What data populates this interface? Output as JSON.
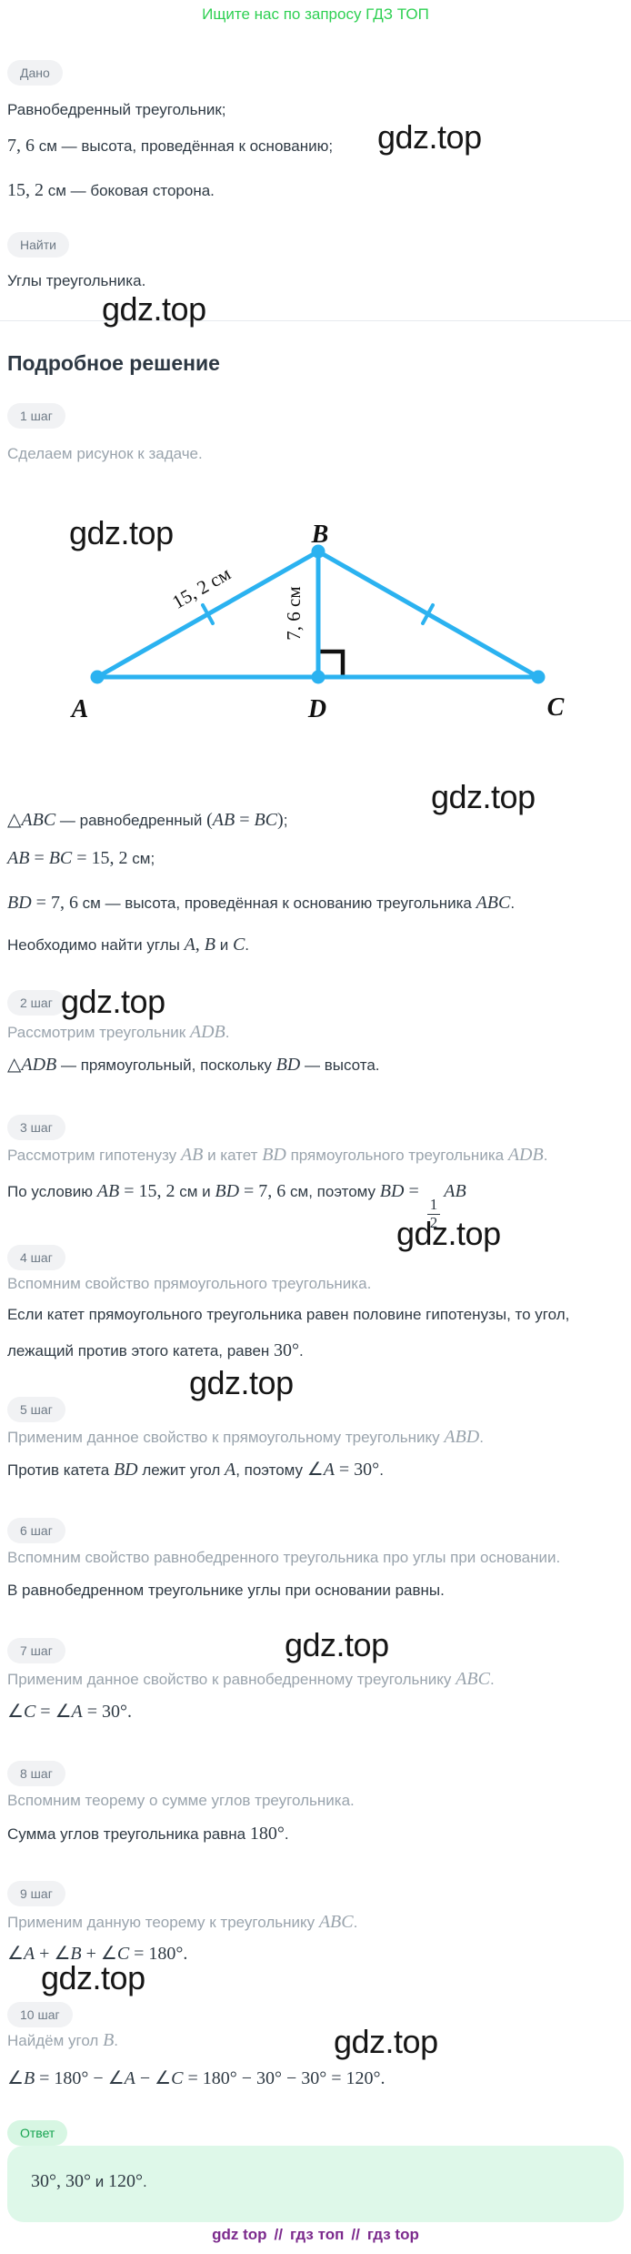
{
  "header": {
    "link_text": "Ищите нас по запросу ГДЗ ТОП"
  },
  "watermark": {
    "text": "gdz.top"
  },
  "given": {
    "badge": "Дано",
    "lines": [
      [
        {
          "t": "Равнобедренный треугольник;",
          "s": "t"
        }
      ],
      [
        {
          "t": "7, 6",
          "s": "m"
        },
        {
          "t": " см — высота, проведённая к основанию;",
          "s": "t"
        }
      ],
      [
        {
          "t": "15, 2",
          "s": "m"
        },
        {
          "t": " см — боковая сторона.",
          "s": "t"
        }
      ]
    ]
  },
  "find": {
    "badge": "Найти",
    "lines": [
      [
        {
          "t": "Углы треугольника.",
          "s": "t"
        }
      ]
    ]
  },
  "solution": {
    "heading": "Подробное решение"
  },
  "diagram": {
    "labels": {
      "a": "A",
      "b": "B",
      "c": "C",
      "d": "D"
    },
    "side_label": "15, 2 см",
    "height_label": "7, 6 см",
    "line_color": "#2bb2f0",
    "mark_color": "#111111"
  },
  "steps": [
    {
      "badge": "1 шаг",
      "desc": [
        {
          "t": "Сделаем рисунок к задаче.",
          "s": "t"
        }
      ],
      "main": [
        [
          {
            "t": "△",
            "s": "m"
          },
          {
            "t": "ABC",
            "s": "mi"
          },
          {
            "t": " — равнобедренный ",
            "s": "t"
          },
          {
            "t": "(",
            "s": "m"
          },
          {
            "t": "AB",
            "s": "mi"
          },
          {
            "t": " = ",
            "s": "m"
          },
          {
            "t": "BC",
            "s": "mi"
          },
          {
            "t": ")",
            "s": "m"
          },
          {
            "t": ";",
            "s": "t"
          }
        ],
        [
          {
            "t": "AB",
            "s": "mi"
          },
          {
            "t": " = ",
            "s": "m"
          },
          {
            "t": "BC",
            "s": "mi"
          },
          {
            "t": " = 15, 2",
            "s": "m"
          },
          {
            "t": " см;",
            "s": "t"
          }
        ],
        [
          {
            "t": "BD",
            "s": "mi"
          },
          {
            "t": " = 7, 6",
            "s": "m"
          },
          {
            "t": " см — высота, проведённая к основанию треугольника ",
            "s": "t"
          },
          {
            "t": "ABC",
            "s": "mi"
          },
          {
            "t": ".",
            "s": "t"
          }
        ],
        [
          {
            "t": "Необходимо найти углы ",
            "s": "t"
          },
          {
            "t": "A",
            "s": "mi"
          },
          {
            "t": ", ",
            "s": "m"
          },
          {
            "t": "B",
            "s": "mi"
          },
          {
            "t": " и ",
            "s": "t"
          },
          {
            "t": "C",
            "s": "mi"
          },
          {
            "t": ".",
            "s": "t"
          }
        ]
      ]
    },
    {
      "badge": "2 шаг",
      "desc": [
        {
          "t": "Рассмотрим треугольник ",
          "s": "t"
        },
        {
          "t": "ADB",
          "s": "mi"
        },
        {
          "t": ".",
          "s": "t"
        }
      ],
      "main": [
        [
          {
            "t": "△",
            "s": "m"
          },
          {
            "t": "ADB",
            "s": "mi"
          },
          {
            "t": " — прямоугольный, поскольку ",
            "s": "t"
          },
          {
            "t": "BD",
            "s": "mi"
          },
          {
            "t": " — высота.",
            "s": "t"
          }
        ]
      ]
    },
    {
      "badge": "3 шаг",
      "desc": [
        {
          "t": "Рассмотрим гипотенузу ",
          "s": "t"
        },
        {
          "t": "AB",
          "s": "mi"
        },
        {
          "t": " и катет ",
          "s": "t"
        },
        {
          "t": "BD",
          "s": "mi"
        },
        {
          "t": " прямоугольного треугольника ",
          "s": "t"
        },
        {
          "t": "ADB",
          "s": "mi"
        },
        {
          "t": ".",
          "s": "t"
        }
      ],
      "main": [
        [
          {
            "t": "По условию ",
            "s": "t"
          },
          {
            "t": "AB",
            "s": "mi"
          },
          {
            "t": " = 15, 2",
            "s": "m"
          },
          {
            "t": " см и ",
            "s": "t"
          },
          {
            "t": "BD",
            "s": "mi"
          },
          {
            "t": " = 7, 6",
            "s": "m"
          },
          {
            "t": " см, поэтому ",
            "s": "t"
          },
          {
            "t": "BD",
            "s": "mi"
          },
          {
            "t": " = ",
            "s": "m"
          },
          {
            "f": [
              "1",
              "2"
            ]
          },
          {
            "t": "AB",
            "s": "mi"
          }
        ]
      ]
    },
    {
      "badge": "4 шаг",
      "desc": [
        {
          "t": "Вспомним свойство прямоугольного треугольника.",
          "s": "t"
        }
      ],
      "main": [
        [
          {
            "t": "Если катет прямоугольного треугольника равен половине гипотенузы, то угол,",
            "s": "t"
          }
        ],
        [
          {
            "t": "лежащий против этого катета, равен ",
            "s": "t"
          },
          {
            "t": "30°",
            "s": "m"
          },
          {
            "t": ".",
            "s": "t"
          }
        ]
      ]
    },
    {
      "badge": "5 шаг",
      "desc": [
        {
          "t": "Применим данное свойство к прямоугольному треугольнику ",
          "s": "t"
        },
        {
          "t": "ABD",
          "s": "mi"
        },
        {
          "t": ".",
          "s": "t"
        }
      ],
      "main": [
        [
          {
            "t": "Против катета ",
            "s": "t"
          },
          {
            "t": "BD",
            "s": "mi"
          },
          {
            "t": " лежит угол ",
            "s": "t"
          },
          {
            "t": "A",
            "s": "mi"
          },
          {
            "t": ", поэтому ",
            "s": "t"
          },
          {
            "t": "∠",
            "s": "m"
          },
          {
            "t": "A",
            "s": "mi"
          },
          {
            "t": " = 30°",
            "s": "m"
          },
          {
            "t": ".",
            "s": "t"
          }
        ]
      ]
    },
    {
      "badge": "6 шаг",
      "desc": [
        {
          "t": "Вспомним свойство равнобедренного треугольника про углы при основании.",
          "s": "t"
        }
      ],
      "main": [
        [
          {
            "t": "В равнобедренном треугольнике углы при основании равны.",
            "s": "t"
          }
        ]
      ]
    },
    {
      "badge": "7 шаг",
      "desc": [
        {
          "t": "Применим данное свойство к равнобедренному треугольнику ",
          "s": "t"
        },
        {
          "t": "ABC",
          "s": "mi"
        },
        {
          "t": ".",
          "s": "t"
        }
      ],
      "main": [
        [
          {
            "t": "∠",
            "s": "m"
          },
          {
            "t": "C",
            "s": "mi"
          },
          {
            "t": " = ",
            "s": "m"
          },
          {
            "t": "∠",
            "s": "m"
          },
          {
            "t": "A",
            "s": "mi"
          },
          {
            "t": " = 30°.",
            "s": "m"
          }
        ]
      ]
    },
    {
      "badge": "8 шаг",
      "desc": [
        {
          "t": "Вспомним теорему о сумме углов треугольника.",
          "s": "t"
        }
      ],
      "main": [
        [
          {
            "t": "Сумма углов треугольника равна ",
            "s": "t"
          },
          {
            "t": "180°",
            "s": "m"
          },
          {
            "t": ".",
            "s": "t"
          }
        ]
      ]
    },
    {
      "badge": "9 шаг",
      "desc": [
        {
          "t": "Применим данную теорему к треугольнику ",
          "s": "t"
        },
        {
          "t": "ABC",
          "s": "mi"
        },
        {
          "t": ".",
          "s": "t"
        }
      ],
      "main": [
        [
          {
            "t": "∠",
            "s": "m"
          },
          {
            "t": "A",
            "s": "mi"
          },
          {
            "t": " + ",
            "s": "m"
          },
          {
            "t": "∠",
            "s": "m"
          },
          {
            "t": "B",
            "s": "mi"
          },
          {
            "t": " + ",
            "s": "m"
          },
          {
            "t": "∠",
            "s": "m"
          },
          {
            "t": "C",
            "s": "mi"
          },
          {
            "t": " = 180°.",
            "s": "m"
          }
        ]
      ]
    },
    {
      "badge": "10 шаг",
      "desc": [
        {
          "t": "Найдём угол ",
          "s": "t"
        },
        {
          "t": "B",
          "s": "mi"
        },
        {
          "t": ".",
          "s": "t"
        }
      ],
      "main": [
        [
          {
            "t": "∠",
            "s": "m"
          },
          {
            "t": "B",
            "s": "mi"
          },
          {
            "t": " = 180° − ",
            "s": "m"
          },
          {
            "t": "∠",
            "s": "m"
          },
          {
            "t": "A",
            "s": "mi"
          },
          {
            "t": " − ",
            "s": "m"
          },
          {
            "t": "∠",
            "s": "m"
          },
          {
            "t": "C",
            "s": "mi"
          },
          {
            "t": " = 180° − 30° − 30° = 120°.",
            "s": "m"
          }
        ]
      ]
    }
  ],
  "answer": {
    "badge": "Ответ",
    "line": [
      {
        "t": "30°, 30°",
        "s": "m"
      },
      {
        "t": " и ",
        "s": "t"
      },
      {
        "t": "120°",
        "s": "m"
      },
      {
        "t": ".",
        "s": "t"
      }
    ]
  },
  "footer": {
    "links": [
      "gdz top",
      "гдз топ",
      "гдз top"
    ],
    "separator": "//"
  }
}
